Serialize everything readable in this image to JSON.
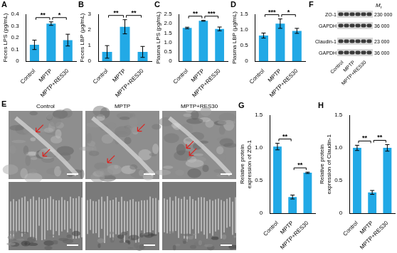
{
  "chart_data": [
    {
      "panel": "A",
      "type": "bar",
      "y_label": "Feces LPS (pg/mL)",
      "categories": [
        "Control",
        "MPTP",
        "MPTP+RES30"
      ],
      "values": [
        0.14,
        0.32,
        0.18
      ],
      "errors": [
        0.04,
        0.015,
        0.05
      ],
      "color": "#22a9e6",
      "ylim": [
        0,
        0.4
      ],
      "yticks": [
        0,
        0.1,
        0.2,
        0.3,
        0.4
      ],
      "grid": false,
      "significance": [
        {
          "between": [
            "Control",
            "MPTP"
          ],
          "text": "**"
        },
        {
          "between": [
            "MPTP",
            "MPTP+RES30"
          ],
          "text": "*"
        }
      ]
    },
    {
      "panel": "B",
      "type": "bar",
      "y_label": "Feces LBP (μg/mL)",
      "categories": [
        "Control",
        "MPTP",
        "MPTP+RES30"
      ],
      "values": [
        0.6,
        2.2,
        0.6
      ],
      "errors": [
        0.4,
        0.45,
        0.35
      ],
      "color": "#22a9e6",
      "ylim": [
        0,
        3
      ],
      "yticks": [
        0,
        1,
        2,
        3
      ],
      "grid": false,
      "significance": [
        {
          "between": [
            "Control",
            "MPTP"
          ],
          "text": "**"
        },
        {
          "between": [
            "MPTP",
            "MPTP+RES30"
          ],
          "text": "**"
        }
      ]
    },
    {
      "panel": "C",
      "type": "bar",
      "y_label": "Plasma LPS (pg/mL)",
      "categories": [
        "Control",
        "MPTP",
        "MPTP+RES30"
      ],
      "values": [
        1.77,
        2.15,
        1.72
      ],
      "errors": [
        0.04,
        0.02,
        0.1
      ],
      "color": "#22a9e6",
      "ylim": [
        0,
        2.5
      ],
      "yticks": [
        0,
        0.5,
        {
          "value": 1,
          "label": "1.0"
        },
        1.5,
        {
          "value": 2,
          "label": "2.0"
        },
        2.5
      ],
      "grid": false,
      "significance": [
        {
          "between": [
            "Control",
            "MPTP"
          ],
          "text": "**"
        },
        {
          "between": [
            "MPTP",
            "MPTP+RES30"
          ],
          "text": "***"
        }
      ]
    },
    {
      "panel": "D",
      "type": "bar",
      "y_label": "Plasma LBP (μg/mL)",
      "categories": [
        "Control",
        "MPTP",
        "MPTP+RES30"
      ],
      "values": [
        0.82,
        1.2,
        0.97
      ],
      "errors": [
        0.08,
        0.15,
        0.08
      ],
      "color": "#22a9e6",
      "ylim": [
        0,
        1.5
      ],
      "yticks": [
        0,
        0.5,
        {
          "value": 1,
          "label": "1.0"
        },
        1.5
      ],
      "grid": false,
      "significance": [
        {
          "between": [
            "Control",
            "MPTP"
          ],
          "text": "***"
        },
        {
          "between": [
            "MPTP",
            "MPTP+RES30"
          ],
          "text": "*"
        }
      ]
    },
    {
      "panel": "G",
      "type": "bar",
      "y_label": [
        "Relative protein",
        "expression of ZO-1"
      ],
      "categories": [
        "Control",
        "MPTP",
        "MPTP+RES30"
      ],
      "values": [
        1.02,
        0.25,
        0.62
      ],
      "errors": [
        0.05,
        0.03,
        0.01
      ],
      "color": "#22a9e6",
      "ylim": [
        0,
        1.5
      ],
      "yticks": [
        0,
        0.5,
        {
          "value": 1,
          "label": "1.0"
        },
        1.5
      ],
      "grid": false,
      "significance": [
        {
          "between": [
            "Control",
            "MPTP"
          ],
          "text": "**"
        },
        {
          "between": [
            "MPTP",
            "MPTP+RES30"
          ],
          "text": "**"
        }
      ]
    },
    {
      "panel": "H",
      "type": "bar",
      "y_label": [
        "Relative protein",
        "expression of Claudin-1"
      ],
      "categories": [
        "Control",
        "MPTP",
        "MPTP+RES30"
      ],
      "values": [
        1.0,
        0.32,
        1.0
      ],
      "errors": [
        0.04,
        0.03,
        0.05
      ],
      "color": "#22a9e6",
      "ylim": [
        0,
        1.5
      ],
      "yticks": [
        0,
        0.5,
        {
          "value": 1,
          "label": "1.0"
        },
        1.5
      ],
      "grid": false,
      "significance": [
        {
          "between": [
            "Control",
            "MPTP"
          ],
          "text": "**"
        },
        {
          "between": [
            "MPTP",
            "MPTP+RES30"
          ],
          "text": "**"
        }
      ]
    }
  ],
  "micrographs": {
    "panel": "E",
    "columns": [
      "Control",
      "MPTP",
      "MPTP+RES30"
    ]
  },
  "blot": {
    "panel": "F",
    "rows": [
      "ZO-1",
      "GAPDH",
      "Claudin-1",
      "GAPDH"
    ],
    "mr_symbol": "M",
    "mr_subscript": "r",
    "mr": [
      "230 000",
      "36 000",
      "23 000",
      "36 000"
    ],
    "lanes": [
      "Control",
      "MPTP",
      "MPTP+RES30"
    ]
  }
}
